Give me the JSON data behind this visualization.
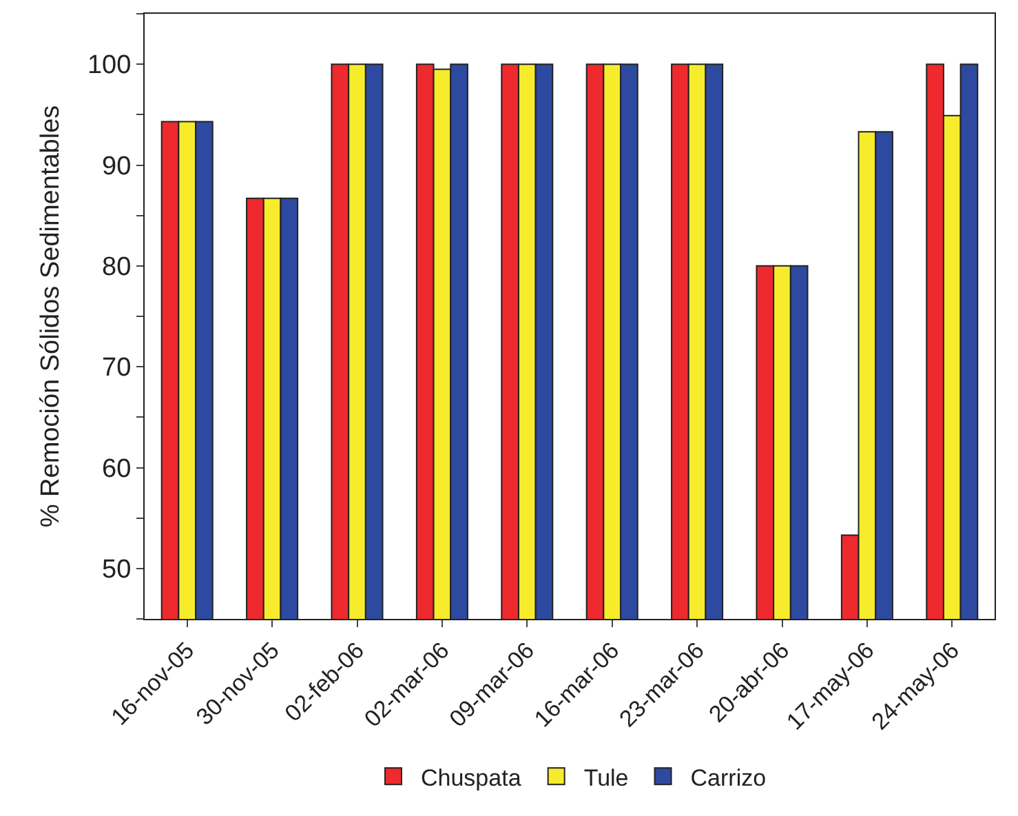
{
  "chart_data": {
    "type": "bar",
    "ylabel": "% Remoción Sólidos Sedimentables",
    "categories": [
      "16-nov-05",
      "30-nov-05",
      "02-feb-06",
      "02-mar-06",
      "09-mar-06",
      "16-mar-06",
      "23-mar-06",
      "20-abr-06",
      "17-may-06",
      "24-may-06"
    ],
    "series": [
      {
        "name": "Chuspata",
        "color": "#ee2a2e",
        "values": [
          94.3,
          86.7,
          100,
          100,
          100,
          100,
          100,
          80,
          53.3,
          100
        ]
      },
      {
        "name": "Tule",
        "color": "#f6ec2c",
        "values": [
          94.3,
          86.7,
          100,
          99.5,
          100,
          100,
          100,
          80,
          93.3,
          94.9
        ]
      },
      {
        "name": "Carrizo",
        "color": "#2e4aa0",
        "values": [
          94.3,
          86.7,
          100,
          100,
          100,
          100,
          100,
          80,
          93.3,
          100
        ]
      }
    ],
    "ylim": [
      45,
      105
    ],
    "yticks": [
      {
        "value": 45,
        "label": null
      },
      50,
      {
        "value": 55,
        "label": null
      },
      60,
      {
        "value": 65,
        "label": null
      },
      70,
      {
        "value": 75,
        "label": null
      },
      80,
      {
        "value": 85,
        "label": null
      },
      90,
      {
        "value": 95,
        "label": null
      },
      100,
      {
        "value": 105,
        "label": null
      }
    ],
    "legend": "bottom"
  }
}
